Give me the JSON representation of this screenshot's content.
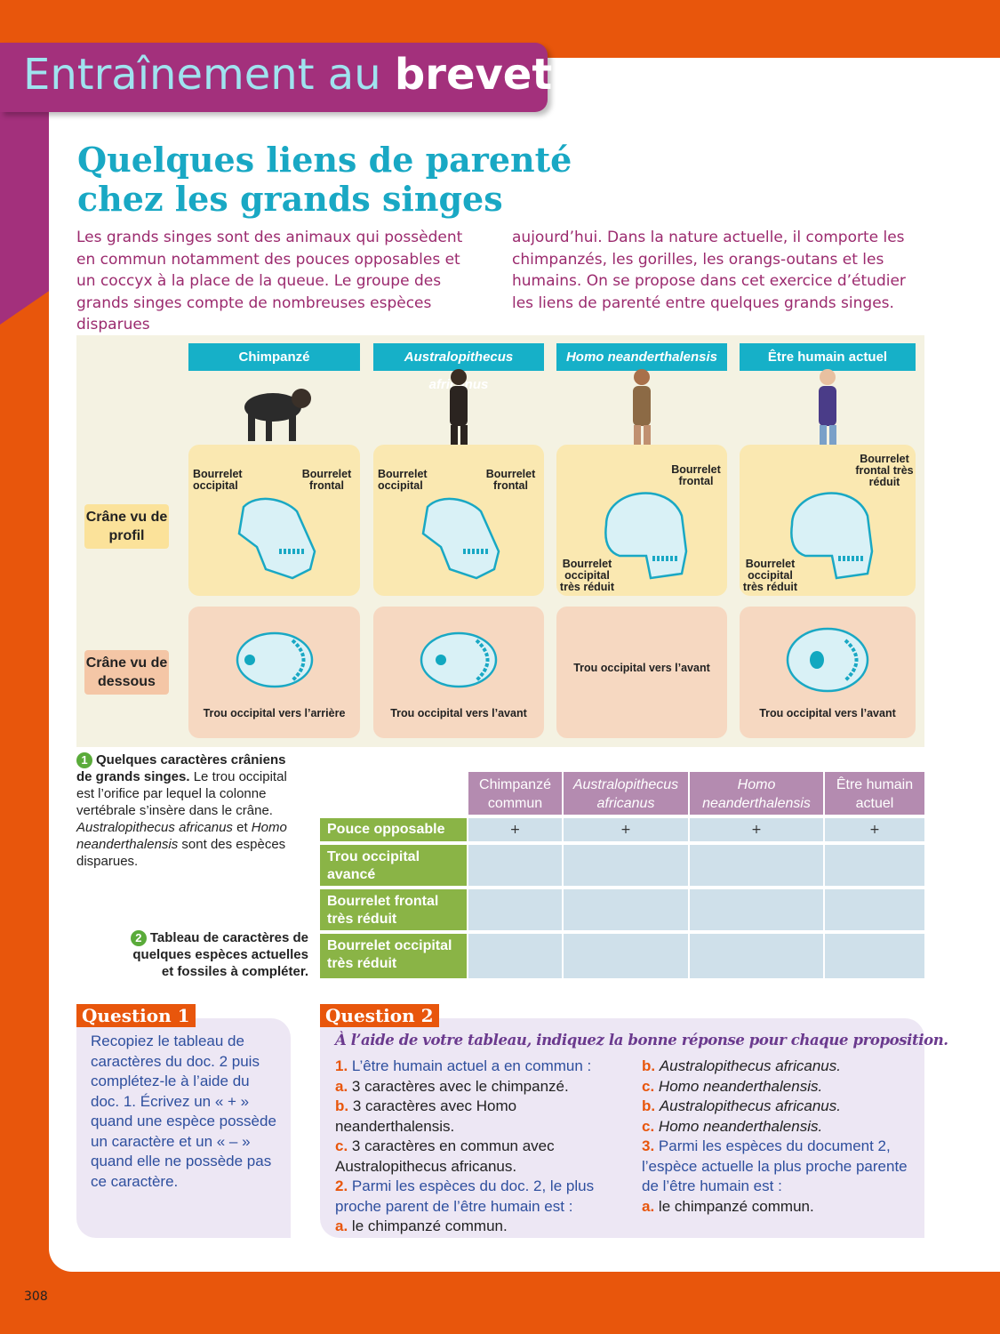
{
  "banner": {
    "light": "Entraînement au",
    "bold": "brevet"
  },
  "heading": {
    "line1": "Quelques liens de parenté",
    "line2": "chez les grands singes"
  },
  "intro": {
    "col1": "Les grands singes sont des animaux qui possèdent en commun notamment des pouces opposables et un coccyx à la place de la queue. Le groupe des grands singes compte de nombreuses espèces disparues",
    "col2": "aujourd’hui. Dans la nature actuelle, il comporte les chimpanzés, les gorilles, les orangs-outans et les humains. On se propose dans cet exercice d’étudier les liens de parenté entre quelques grands singes."
  },
  "figure": {
    "columns": [
      "Chimpanzé",
      "Australopithecus africanus",
      "Homo neanderthalensis",
      "Être humain actuel"
    ],
    "row_labels": [
      "Crâne vu de profil",
      "Crâne vu de dessous"
    ],
    "profile_labels": [
      {
        "a": "Bourrelet occipital",
        "b": "Bourrelet frontal"
      },
      {
        "a": "Bourrelet occipital",
        "b": "Bourrelet frontal"
      },
      {
        "a": "Bourrelet occipital très réduit",
        "b": "Bourrelet frontal"
      },
      {
        "a": "Bourrelet occipital très réduit",
        "b": "Bourrelet frontal très réduit"
      }
    ],
    "below_labels": [
      "Trou occipital vers l’arrière",
      "Trou occipital vers l’avant",
      "Trou occipital vers l’avant",
      "Trou occipital vers l’avant"
    ],
    "colors": {
      "header": "#16b0c8",
      "profile_bg": "#fae8b1",
      "below_bg": "#f6d8c1",
      "skull": "#d9f1f6"
    }
  },
  "doc1": {
    "number": "1",
    "title": "Quelques caractères crâniens de grands singes.",
    "text1": " Le trou occipital est l’orifice par lequel la colonne vertébrale s’insère dans le crâne. ",
    "italic1": "Australopithecus africanus",
    "text2": " et ",
    "italic2": "Homo neanderthalensis",
    "text3": " sont des espèces disparues."
  },
  "doc2": {
    "number": "2",
    "title": "Tableau de caractères de quelques espèces actuelles et fossiles à compléter."
  },
  "table": {
    "headers": [
      "Chimpanzé commun",
      "Australopithecus africanus",
      "Homo neanderthalensis",
      "Être humain actuel"
    ],
    "rows": [
      {
        "label": "Pouce opposable",
        "cells": [
          "+",
          "+",
          "+",
          "+"
        ]
      },
      {
        "label": "Trou occipital avancé",
        "cells": [
          "",
          "",
          "",
          ""
        ]
      },
      {
        "label": "Bourrelet frontal très réduit",
        "cells": [
          "",
          "",
          "",
          ""
        ]
      },
      {
        "label": "Bourrelet occipital très réduit",
        "cells": [
          "",
          "",
          "",
          ""
        ]
      }
    ]
  },
  "q1": {
    "tag": "Question 1",
    "text": "Recopiez le tableau de caractères du doc. 2 puis complétez-le à l’aide du doc. 1. Écrivez un « + » quand une espèce possède un caractère et un « – » quand elle ne possède pas ce caractère."
  },
  "q2": {
    "tag": "Question 2",
    "instruction": "À l’aide de votre tableau, indiquez la bonne réponse pour chaque proposition.",
    "items": [
      {
        "n": "1.",
        "stem": "L’être humain actuel a en commun :",
        "options": [
          {
            "k": "a.",
            "t": "3 caractères avec le chimpanzé."
          },
          {
            "k": "b.",
            "t": "3 caractères avec Homo neanderthalensis."
          },
          {
            "k": "c.",
            "t": "3 caractères en commun avec Australopithecus africanus."
          }
        ]
      },
      {
        "n": "2.",
        "stem": "Parmi les espèces du doc. 2, le plus proche parent de l’être humain est :",
        "options": [
          {
            "k": "a.",
            "t": "le chimpanzé commun."
          },
          {
            "k": "b.",
            "t": "Australopithecus africanus."
          },
          {
            "k": "c.",
            "t": "Homo neanderthalensis."
          }
        ]
      },
      {
        "n": "3.",
        "stem": "Parmi les espèces du document 2, l’espèce actuelle la plus proche parente de l’être humain est :",
        "options": [
          {
            "k": "a.",
            "t": "le chimpanzé commun."
          },
          {
            "k": "b.",
            "t": "Australopithecus africanus."
          },
          {
            "k": "c.",
            "t": "Homo neanderthalensis."
          }
        ]
      }
    ]
  },
  "page_number": "308"
}
